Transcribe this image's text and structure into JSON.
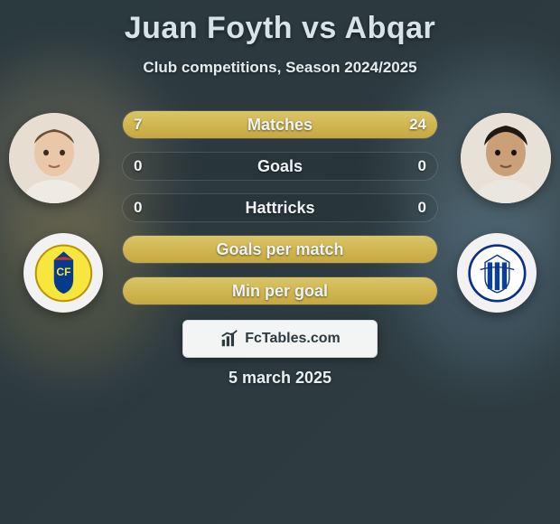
{
  "title": "Juan Foyth vs Abqar",
  "subtitle": "Club competitions, Season 2024/2025",
  "date_label": "5 march 2025",
  "brand": {
    "text": "FcTables.com"
  },
  "colors": {
    "bar_fill_top": "#d9c666",
    "bar_fill_bottom": "#c7a83f",
    "bar_border": "rgba(255,255,255,0.14)",
    "bg_from": "#2b3a3f",
    "bg_to": "#2f3d42",
    "text_main": "#eef4f5",
    "title_color": "#d7e3e6"
  },
  "players": {
    "left": {
      "name": "Juan Foyth",
      "club": "Villarreal"
    },
    "right": {
      "name": "Abqar",
      "club": "Alavés"
    }
  },
  "stats": [
    {
      "label": "Matches",
      "left_value": "7",
      "right_value": "24",
      "left_fill_pct": 22.58,
      "right_fill_pct": 77.42,
      "show_values": true
    },
    {
      "label": "Goals",
      "left_value": "0",
      "right_value": "0",
      "left_fill_pct": 0,
      "right_fill_pct": 0,
      "show_values": true
    },
    {
      "label": "Hattricks",
      "left_value": "0",
      "right_value": "0",
      "left_fill_pct": 0,
      "right_fill_pct": 0,
      "show_values": true
    },
    {
      "label": "Goals per match",
      "left_value": "",
      "right_value": "",
      "full_fill": true,
      "show_values": false
    },
    {
      "label": "Min per goal",
      "left_value": "",
      "right_value": "",
      "full_fill": true,
      "show_values": false
    }
  ]
}
